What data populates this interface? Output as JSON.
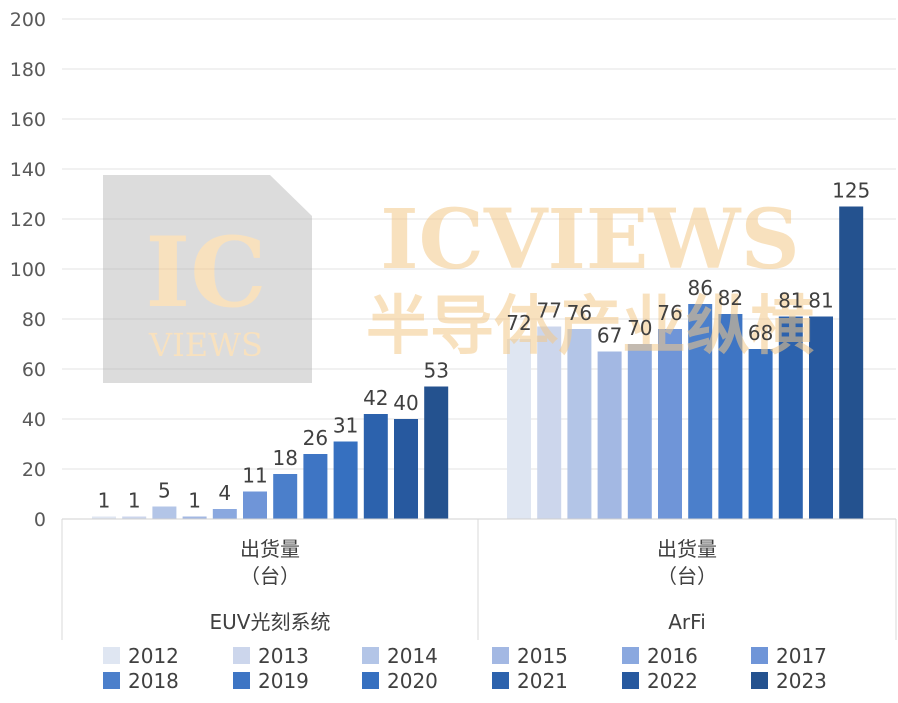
{
  "chart_data": {
    "type": "bar",
    "ylim": [
      0,
      200
    ],
    "yticks": [
      0,
      20,
      40,
      60,
      80,
      100,
      120,
      140,
      160,
      180,
      200
    ],
    "grid": true,
    "legend_placement": "bottom",
    "groups": [
      {
        "category": "出货量",
        "unit": "（台）",
        "label": "EUV光刻系统",
        "x": [
          2012,
          2013,
          2014,
          2015,
          2016,
          2017,
          2018,
          2019,
          2020,
          2021,
          2022,
          2023
        ],
        "values": [
          1,
          1,
          5,
          1,
          4,
          11,
          18,
          26,
          31,
          42,
          40,
          53
        ]
      },
      {
        "category": "出货量",
        "unit": "（台）",
        "label": "ArFi",
        "x": [
          2012,
          2013,
          2014,
          2015,
          2016,
          2017,
          2018,
          2019,
          2020,
          2021,
          2022,
          2023
        ],
        "values": [
          72,
          77,
          76,
          67,
          70,
          76,
          86,
          82,
          68,
          81,
          81,
          125
        ]
      }
    ],
    "legend": [
      "2012",
      "2013",
      "2014",
      "2015",
      "2016",
      "2017",
      "2018",
      "2019",
      "2020",
      "2021",
      "2022",
      "2023"
    ],
    "colors": [
      "#dfe6f2",
      "#ccd6ec",
      "#b3c5e7",
      "#a3b8e3",
      "#8aa8df",
      "#6f95d8",
      "#4b7fcb",
      "#3e75c4",
      "#3670c0",
      "#2c62ad",
      "#27599f",
      "#24528f"
    ]
  },
  "watermark": {
    "logo_top": "IC",
    "logo_bottom": "VIEWS",
    "title": "ICVIEWS",
    "subtitle": "半导体产业纵横"
  }
}
